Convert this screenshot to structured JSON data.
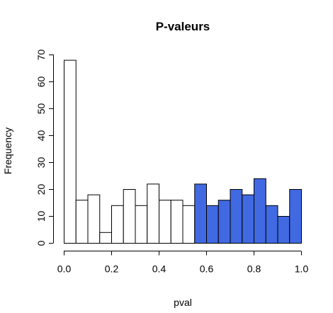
{
  "chart_data": {
    "type": "bar",
    "title": "P-valeurs",
    "xlabel": "pval",
    "ylabel": "Frequency",
    "bin_width": 0.05,
    "bins_start": [
      0.0,
      0.05,
      0.1,
      0.15,
      0.2,
      0.25,
      0.3,
      0.35,
      0.4,
      0.45,
      0.5,
      0.55,
      0.6,
      0.65,
      0.7,
      0.75,
      0.8,
      0.85,
      0.9,
      0.95
    ],
    "values": [
      68,
      16,
      18,
      4,
      14,
      20,
      14,
      22,
      16,
      16,
      14,
      22,
      14,
      16,
      20,
      18,
      24,
      14,
      10,
      20
    ],
    "highlight_from": 0.55,
    "colors": {
      "default": "#ffffff",
      "highlight": "#4169e1"
    },
    "xlim": [
      0,
      1
    ],
    "ylim": [
      0,
      70
    ],
    "xticks": [
      "0.0",
      "0.2",
      "0.4",
      "0.6",
      "0.8",
      "1.0"
    ],
    "yticks": [
      "0",
      "10",
      "20",
      "30",
      "40",
      "50",
      "60",
      "70"
    ],
    "grid": false
  }
}
